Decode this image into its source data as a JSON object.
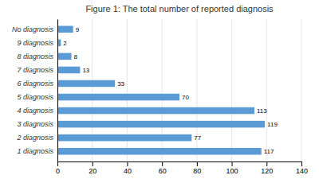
{
  "chart_data": {
    "type": "bar",
    "orientation": "horizontal",
    "title": "Figure 1: The total number of reported diagnosis",
    "categories": [
      "1 diagnosis",
      "2 diagnosis",
      "3 diagnosis",
      "4 diagnosis",
      "5 diagnosis",
      "6 diagnosis",
      "7 diagnosis",
      "8 diagnosis",
      "9 diagnosis",
      "No diagnosis"
    ],
    "values": [
      117,
      77,
      119,
      113,
      70,
      33,
      13,
      8,
      2,
      9
    ],
    "color": "#5b9bd5",
    "xlim": [
      0,
      140
    ],
    "xticks": [
      0,
      20,
      40,
      60,
      80,
      100,
      120,
      140
    ],
    "grid": true,
    "data_labels": true
  }
}
